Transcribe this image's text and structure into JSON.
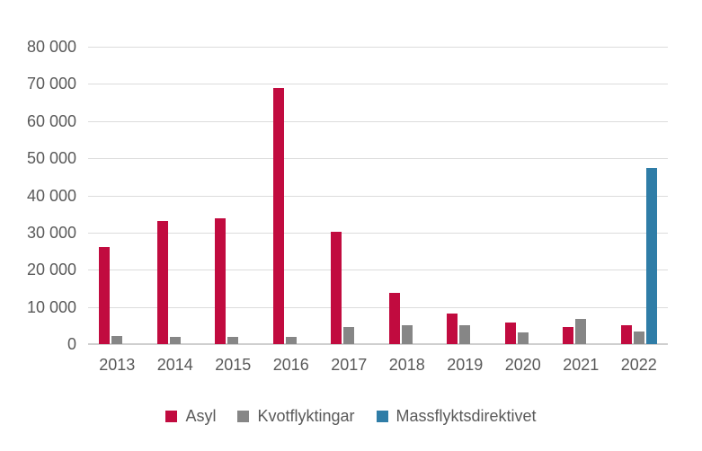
{
  "chart_data": {
    "type": "bar",
    "categories": [
      "2013",
      "2014",
      "2015",
      "2016",
      "2017",
      "2018",
      "2019",
      "2020",
      "2021",
      "2022"
    ],
    "series": [
      {
        "name": "Asyl",
        "color": "#c10b3f",
        "values": [
          26200,
          33000,
          33800,
          68900,
          30300,
          13700,
          8200,
          5900,
          4500,
          5100
        ]
      },
      {
        "name": "Kvotflyktingar",
        "color": "#868686",
        "values": [
          2100,
          1900,
          1900,
          1900,
          4700,
          5000,
          5100,
          3100,
          6700,
          3500
        ]
      },
      {
        "name": "Massflyktsdirektivet",
        "color": "#2f7da7",
        "values": [
          0,
          0,
          0,
          0,
          0,
          0,
          0,
          0,
          0,
          47400
        ]
      }
    ],
    "title": "",
    "xlabel": "",
    "ylabel": "",
    "ylim": [
      0,
      80000
    ],
    "ytick_step": 10000,
    "ytick_labels": [
      "0",
      "10 000",
      "20 000",
      "30 000",
      "40 000",
      "50 000",
      "60 000",
      "70 000",
      "80 000"
    ],
    "grid": true,
    "legend_position": "bottom"
  },
  "colors": {
    "axis_text": "#595959",
    "gridline": "#dcdcdc",
    "baseline": "#cfcfcf",
    "background": "#ffffff"
  }
}
